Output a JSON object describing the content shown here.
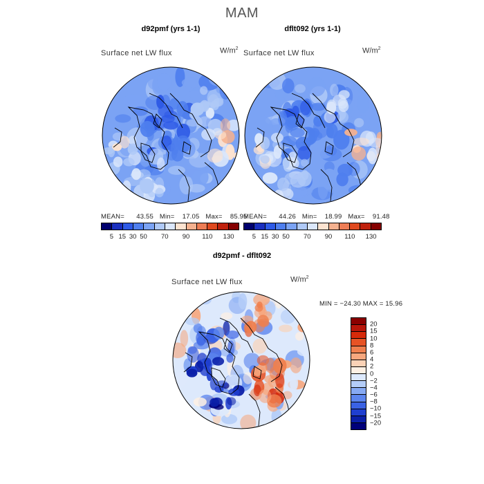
{
  "figure": {
    "title": "MAM"
  },
  "colors": {
    "abs_palette": [
      "#00006e",
      "#1a2fbf",
      "#2e5ae6",
      "#4f7fee",
      "#7ba3f4",
      "#afc9f7",
      "#dbe7fb",
      "#fde3d0",
      "#f5b18f",
      "#ee7d55",
      "#e0491f",
      "#c0210d",
      "#850000"
    ],
    "diff_palette": [
      "#00007a",
      "#0a1fa8",
      "#1f3fd0",
      "#3a62e4",
      "#5c85ee",
      "#86a9f3",
      "#b4cdf8",
      "#dde9fc",
      "#fdf0e4",
      "#fbd2b6",
      "#f6a77e",
      "#ef7f4e",
      "#e65325",
      "#d62a0a",
      "#b8160a",
      "#8a0000"
    ],
    "coast": "#000000"
  },
  "chart_data": [
    {
      "type": "heatmap",
      "title": "d92pmf (yrs 1-1)",
      "variable": "Surface net LW flux",
      "units_base": "W/m",
      "units_exp": "2",
      "stats": {
        "mean_label": "MEAN=",
        "mean": "43.55",
        "min_label": "Min=",
        "min": "17.05",
        "max_label": "Max=",
        "max": "85.95"
      },
      "colorbar_ticks": [
        "5",
        "15",
        "30",
        "50",
        "70",
        "90",
        "110",
        "130"
      ],
      "projection": "polar stereographic (north)"
    },
    {
      "type": "heatmap",
      "title": "dflt092 (yrs 1-1)",
      "variable": "Surface net LW flux",
      "units_base": "W/m",
      "units_exp": "2",
      "stats": {
        "mean_label": "MEAN=",
        "mean": "44.26",
        "min_label": "Min=",
        "min": "18.99",
        "max_label": "Max=",
        "max": "91.48"
      },
      "colorbar_ticks": [
        "5",
        "15",
        "30",
        "50",
        "70",
        "90",
        "110",
        "130"
      ],
      "projection": "polar stereographic (north)"
    },
    {
      "type": "heatmap",
      "title": "d92pmf - dflt092",
      "variable": "Surface net LW flux",
      "units_base": "W/m",
      "units_exp": "2",
      "stats_text": "MIN = −24.30 MAX =  15.96",
      "colorbar_ticks": [
        "20",
        "15",
        "10",
        "8",
        "6",
        "4",
        "2",
        "0",
        "−2",
        "−4",
        "−6",
        "−8",
        "−10",
        "−15",
        "−20"
      ],
      "projection": "polar stereographic (north)"
    }
  ]
}
